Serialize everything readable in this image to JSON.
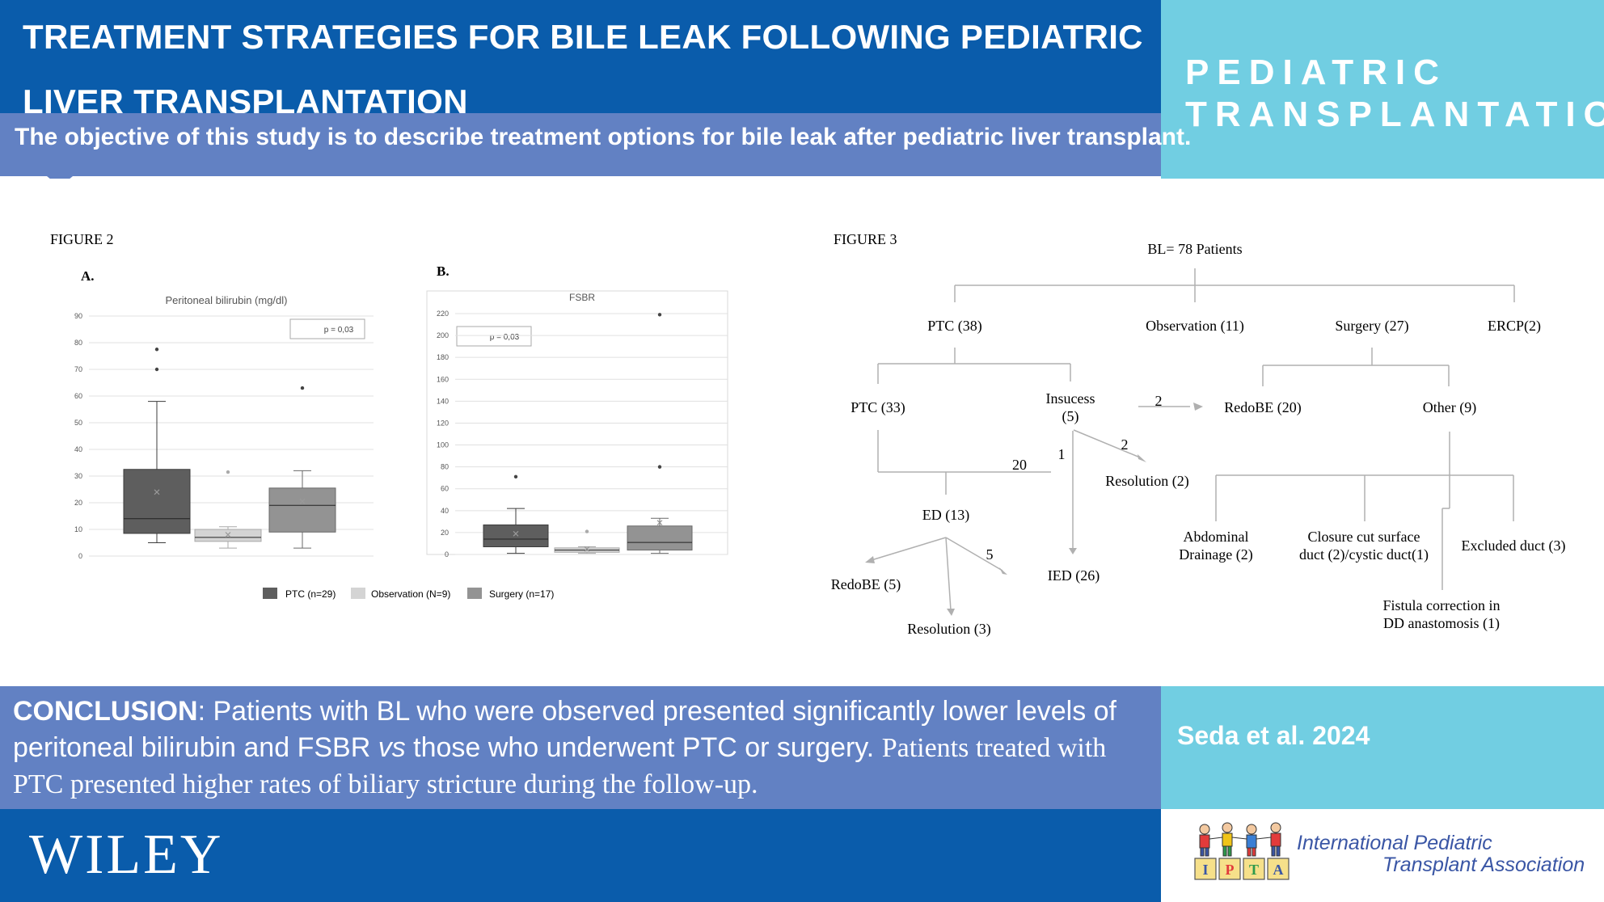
{
  "header": {
    "title_line1": "TREATMENT STRATEGIES FOR BILE LEAK FOLLOWING PEDIATRIC",
    "title_line2": "LIVER TRANSPLANTATION"
  },
  "objective": "The objective of this study is to describe treatment options for bile leak after pediatric liver transplant.",
  "journal": {
    "line1": "PEDIATRIC",
    "line2": "TRANSPLANTATION"
  },
  "figure2": {
    "label": "FIGURE 2",
    "legend": [
      {
        "name": "PTC (n=29)",
        "color": "#5e5e5e"
      },
      {
        "name": "Observation (N=9)",
        "color": "#d4d4d4"
      },
      {
        "name": "Surgery (n=17)",
        "color": "#939393"
      }
    ],
    "chart_data": [
      {
        "type": "box",
        "panel": "A.",
        "title": "Peritoneal bilirubin (mg/dl)",
        "annotation": "p = 0,03",
        "ylim": [
          0,
          90
        ],
        "yticks": [
          "0",
          "10",
          "20",
          "30",
          "40",
          "50",
          "60",
          "70",
          "80",
          "90"
        ],
        "groups": [
          {
            "name": "PTC (n=29)",
            "whisker_low": 5,
            "q1": 8.5,
            "median": 14,
            "q3": 32.5,
            "whisker_high": 58,
            "mean": 24,
            "outliers": [
              70,
              77.5
            ]
          },
          {
            "name": "Observation (N=9)",
            "whisker_low": 3,
            "q1": 5.5,
            "median": 7,
            "q3": 10,
            "whisker_high": 11,
            "mean": 8,
            "outliers": [
              31.5
            ]
          },
          {
            "name": "Surgery (n=17)",
            "whisker_low": 3,
            "q1": 9,
            "median": 19,
            "q3": 25.5,
            "whisker_high": 32,
            "mean": 20.5,
            "outliers": [
              63
            ]
          }
        ]
      },
      {
        "type": "box",
        "panel": "B.",
        "title": "FSBR",
        "annotation": "p = 0,03",
        "ylim": [
          0,
          220
        ],
        "yticks": [
          "0",
          "20",
          "40",
          "60",
          "80",
          "100",
          "120",
          "140",
          "160",
          "180",
          "200",
          "220"
        ],
        "groups": [
          {
            "name": "PTC (n=29)",
            "whisker_low": 1,
            "q1": 7,
            "median": 14,
            "q3": 27,
            "whisker_high": 42,
            "mean": 19,
            "outliers": [
              71
            ]
          },
          {
            "name": "Observation (N=9)",
            "whisker_low": 1,
            "q1": 2,
            "median": 4,
            "q3": 6,
            "whisker_high": 7,
            "mean": 5,
            "outliers": [
              21
            ]
          },
          {
            "name": "Surgery (n=17)",
            "whisker_low": 1,
            "q1": 4,
            "median": 11,
            "q3": 26,
            "whisker_high": 33,
            "mean": 29,
            "outliers": [
              80,
              219
            ]
          }
        ]
      }
    ]
  },
  "figure3": {
    "label": "FIGURE 3",
    "root": "BL= 78 Patients",
    "nodes": {
      "ptc38": "PTC (38)",
      "obs11": "Observation (11)",
      "surg27": "Surgery (27)",
      "ercp2": "ERCP(2)",
      "ptc33": "PTC (33)",
      "insucess1": "Insucess",
      "insucess2": "(5)",
      "redobe20": "RedoBE (20)",
      "other9": "Other (9)",
      "res2": "Resolution (2)",
      "ed13": "ED (13)",
      "ied26": "IED (26)",
      "redobe5": "RedoBE (5)",
      "res3": "Resolution (3)",
      "abd1": "Abdominal",
      "abd2": "Drainage (2)",
      "clos1": "Closure cut surface",
      "clos2": "duct (2)/cystic duct(1)",
      "excl": "Excluded duct (3)",
      "fist1": "Fistula correction in",
      "fist2": "DD anastomosis (1)"
    },
    "edge_labels": {
      "to_redobe20": "2",
      "to_res2": "2",
      "to_ied": "1",
      "to_ed": "20",
      "ed_to_ied": "5"
    }
  },
  "conclusion": {
    "lead": "CONCLUSION",
    "part1": ": Patients with BL who were observed presented significantly lower levels of peritoneal bilirubin and FSBR ",
    "vs": "vs",
    "part2": " those who underwent PTC or surgery. ",
    "part3": "Patients treated with PTC presented higher rates of biliary stricture during the follow-up."
  },
  "citation": "Seda et al. 2024",
  "footer": {
    "publisher": "WILEY",
    "ipta_logo_letters": [
      "I",
      "P",
      "T",
      "A"
    ],
    "ipta_line1": "International Pediatric",
    "ipta_line2": "Transplant Association"
  }
}
